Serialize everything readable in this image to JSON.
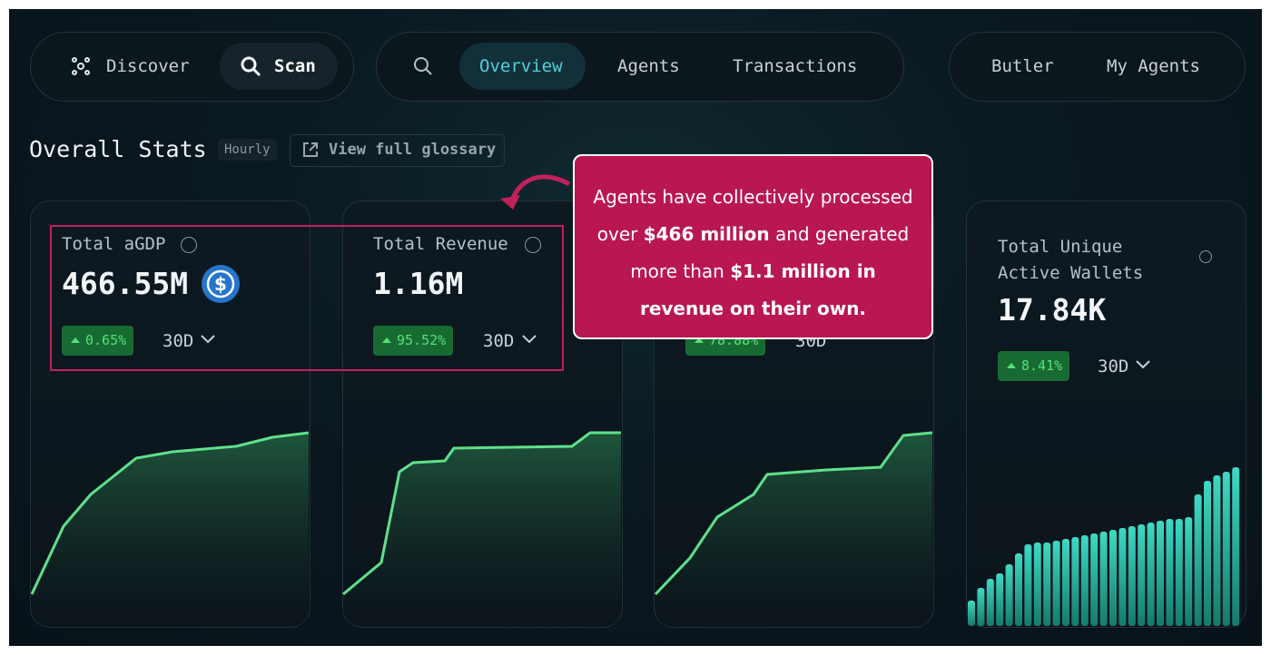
{
  "nav": {
    "left": [
      "Discover",
      "Scan"
    ],
    "center": [
      "Overview",
      "Agents",
      "Transactions"
    ],
    "right": [
      "Butler",
      "My Agents"
    ]
  },
  "header": {
    "title": "Overall Stats",
    "badge": "Hourly",
    "link": "View full glossary"
  },
  "cards": [
    {
      "label": "Total aGDP",
      "value": "466.55M",
      "change": "0.65%",
      "period": "30D"
    },
    {
      "label": "Total Revenue",
      "value": "1.16M",
      "change": "95.52%",
      "period": "30D"
    },
    {
      "change": "78.88%",
      "period": "30D"
    },
    {
      "label": "Total Unique Active Wallets",
      "value": "17.84K",
      "change": "8.41%",
      "period": "30D"
    }
  ],
  "callout": {
    "parts": [
      "Agents have collectively processed over ",
      "$466 million",
      " and generated more than ",
      "$1.1 million in revenue on their own."
    ]
  }
}
